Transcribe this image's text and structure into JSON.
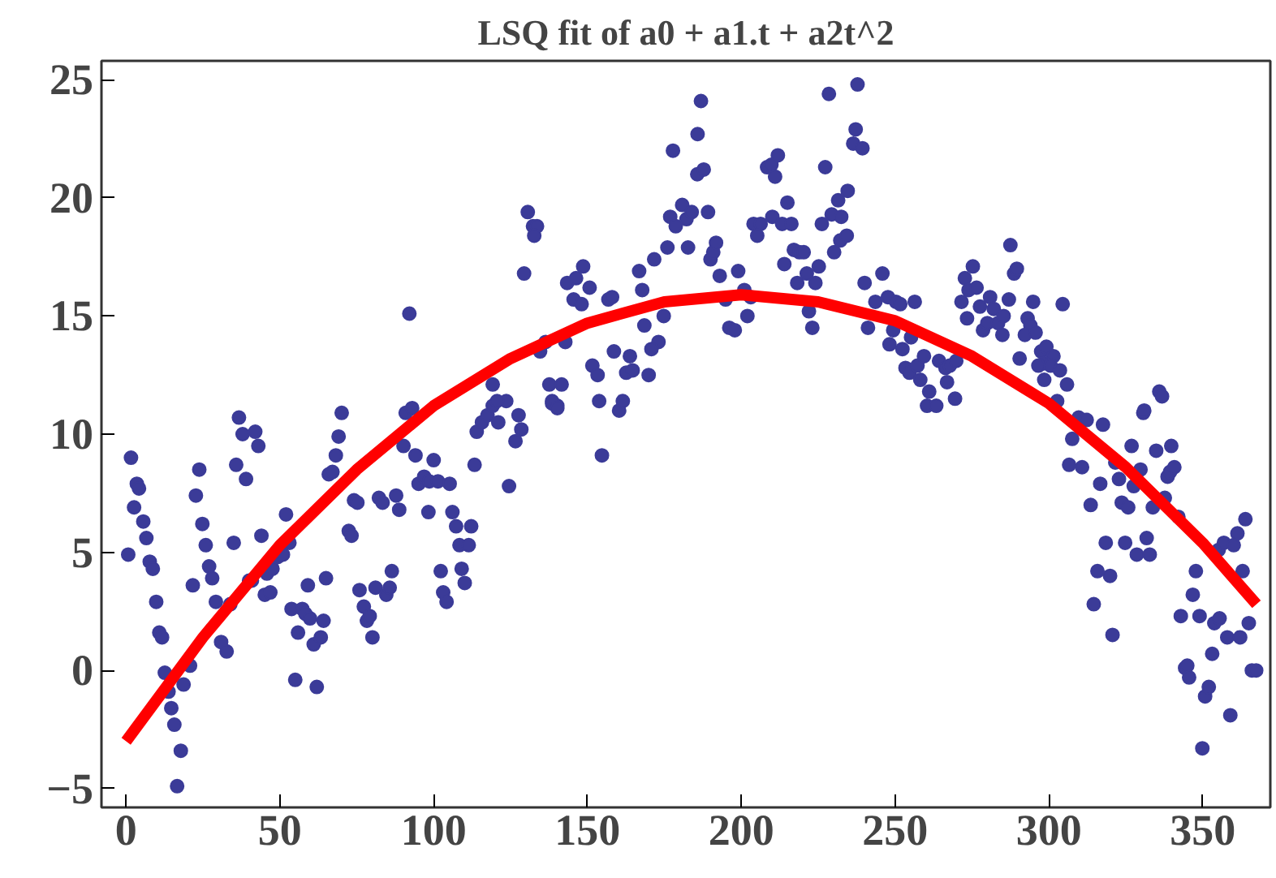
{
  "chart_data": {
    "type": "scatter",
    "title": "LSQ fit of a0 + a1.t + a2t^2",
    "xlim": [
      -8,
      372
    ],
    "ylim": [
      -5.8,
      25.8
    ],
    "xticks": [
      0,
      50,
      100,
      150,
      200,
      250,
      300,
      350
    ],
    "yticks": [
      -5,
      0,
      5,
      10,
      15,
      20,
      25
    ],
    "series": [
      {
        "marker": "circle",
        "color": "#3b3b98",
        "x": [
          0.7,
          1.6,
          2.6,
          3.5,
          4.2,
          5.6,
          6.6,
          7.7,
          8.7,
          9.8,
          10.8,
          11.7,
          12.6,
          13.8,
          14.7,
          15.7,
          17.8,
          16.6,
          18.7,
          20.8,
          21.7,
          22.7,
          23.8,
          24.8,
          25.9,
          27,
          28,
          29.2,
          30.9,
          32.7,
          33.9,
          35,
          35.8,
          36.7,
          37.9,
          39,
          40,
          40.9,
          42,
          43,
          44,
          45.1,
          46.9,
          45.8,
          47.6,
          49.3,
          51,
          52,
          53.1,
          53.8,
          55,
          55.9,
          57.3,
          58.3,
          59.8,
          59.1,
          61,
          63.3,
          62,
          64.2,
          65,
          65.9,
          67.1,
          68.2,
          69.1,
          70.1,
          72.4,
          73.3,
          74.1,
          75.2,
          75.9,
          77.3,
          78.3,
          79.2,
          80.1,
          81.1,
          82.2,
          83.4,
          84.6,
          85.7,
          86.4,
          87.8,
          88.8,
          90.2,
          90.9,
          93,
          92.1,
          94.1,
          95.1,
          96.9,
          98.6,
          100,
          98.3,
          101.4,
          105.2,
          106.1,
          107.3,
          112.2,
          108.4,
          111.4,
          102.3,
          109.1,
          110.1,
          103.1,
          104.2,
          113.3,
          114,
          115.7,
          117.5,
          119.2,
          121,
          123.6,
          120.6,
          127.6,
          128.5,
          126.6,
          124.5,
          138.5,
          140.2,
          153.8,
          154.7,
          160.3,
          161.5,
          130.6,
          132.3,
          133.6,
          132.7,
          129.4,
          143.4,
          146.3,
          148.6,
          150.7,
          145.5,
          148.1,
          134.6,
          136.4,
          142.8,
          137.6,
          141.6,
          138.5,
          140.2,
          119.2,
          151.6,
          153.3,
          158.6,
          162.6,
          164.7,
          163.8,
          169.9,
          156.8,
          158,
          166.8,
          167.8,
          171.7,
          174.8,
          168.5,
          173.1,
          170.8,
          176,
          177.8,
          176.9,
          178.7,
          180.8,
          182.2,
          183.9,
          182.7,
          185.7,
          187.8,
          185.8,
          186.9,
          189.2,
          190,
          190.9,
          191.8,
          193,
          194.9,
          196.1,
          197.9,
          199,
          202,
          201,
          203.1,
          204,
          206.3,
          205.2,
          208.4,
          209.8,
          211.9,
          211,
          210.1,
          213.3,
          216.3,
          215,
          214,
          217.1,
          218.9,
          220.3,
          218.2,
          221.3,
          224.1,
          225.2,
          222,
          223.1,
          226.2,
          228.5,
          227.3,
          229.4,
          231.5,
          232.5,
          234.6,
          230.2,
          232.2,
          234.3,
          236.4,
          237.8,
          237.2,
          239.4,
          240.1,
          241.2,
          243.6,
          245.9,
          247.7,
          250.3,
          251.7,
          249.4,
          248.2,
          252.4,
          256.4,
          255.2,
          253.4,
          254.7,
          257.3,
          259.4,
          258.2,
          261.1,
          260.4,
          263.4,
          264.3,
          266.4,
          267.8,
          269.9,
          266.9,
          269.5,
          271.6,
          272.7,
          273.9,
          275.3,
          276.5,
          277.6,
          273.4,
          278.6,
          280,
          280.9,
          282.1,
          283.5,
          284.9,
          285.3,
          287,
          287.5,
          288.7,
          289.6,
          293.1,
          294,
          294.9,
          292.2,
          295.7,
          290.5,
          297.5,
          299.2,
          301.5,
          298.4,
          296.6,
          300.6,
          303.6,
          305.9,
          298.5,
          302.7,
          304.5,
          309.7,
          312.3,
          317.6,
          330.7,
          335.9,
          336.8,
          307.6,
          306.6,
          310.8,
          313.6,
          316.7,
          318.5,
          319.9,
          315.8,
          314.6,
          320.7,
          321.6,
          322.8,
          323.7,
          325.8,
          324.8,
          326.9,
          327.6,
          328.6,
          329.8,
          331,
          331.8,
          332.8,
          333.8,
          334.9,
          338.6,
          339.8,
          339.4,
          340.8,
          337.7,
          342.1,
          342.9,
          344.3,
          345,
          345.6,
          346.8,
          347.8,
          349,
          349.9,
          350.8,
          352,
          353.1,
          353.8,
          355.5,
          355.2,
          356.9,
          358,
          359,
          360.1,
          361.3,
          362.2,
          363,
          363.9,
          365,
          366,
          367.4
        ],
        "values": [
          4.9,
          9.0,
          6.9,
          7.9,
          7.7,
          6.3,
          5.6,
          4.6,
          4.3,
          2.9,
          1.6,
          1.4,
          -0.1,
          -0.9,
          -1.6,
          -2.3,
          -3.4,
          -4.9,
          -0.6,
          0.2,
          3.6,
          7.4,
          8.5,
          6.2,
          5.3,
          4.4,
          3.9,
          2.9,
          1.2,
          0.8,
          2.8,
          5.4,
          8.7,
          10.7,
          10.0,
          8.1,
          3.8,
          3.8,
          10.1,
          9.5,
          5.7,
          3.2,
          3.3,
          4.1,
          4.3,
          4.8,
          4.9,
          6.6,
          5.4,
          2.6,
          -0.4,
          1.6,
          2.6,
          2.4,
          2.2,
          3.6,
          1.1,
          1.4,
          -0.7,
          2.1,
          3.9,
          8.3,
          8.4,
          9.1,
          9.9,
          10.9,
          5.9,
          5.7,
          7.2,
          7.1,
          3.4,
          2.7,
          2.1,
          2.3,
          1.4,
          3.5,
          7.3,
          7.1,
          3.2,
          3.5,
          4.2,
          7.4,
          6.8,
          9.5,
          10.9,
          11.1,
          15.1,
          9.1,
          7.9,
          8.2,
          8.0,
          8.9,
          6.7,
          8.0,
          7.9,
          6.7,
          6.1,
          6.1,
          5.3,
          5.3,
          4.2,
          4.3,
          3.7,
          3.3,
          2.9,
          8.7,
          10.1,
          10.5,
          10.8,
          11.2,
          10.5,
          11.4,
          11.4,
          10.8,
          10.2,
          9.7,
          7.8,
          11.4,
          11.2,
          11.4,
          9.1,
          11.0,
          11.4,
          19.4,
          18.8,
          18.8,
          18.4,
          16.8,
          16.4,
          16.6,
          17.1,
          16.2,
          15.7,
          15.5,
          13.5,
          13.9,
          13.9,
          12.1,
          12.1,
          11.3,
          11.1,
          12.1,
          12.9,
          12.5,
          13.5,
          12.6,
          12.7,
          13.3,
          12.5,
          15.7,
          15.8,
          16.9,
          16.1,
          17.4,
          15.0,
          14.6,
          13.9,
          13.6,
          17.9,
          22.0,
          19.2,
          18.8,
          19.7,
          19.1,
          19.4,
          17.9,
          21.0,
          21.2,
          22.7,
          24.1,
          19.4,
          17.4,
          17.7,
          18.1,
          16.7,
          15.7,
          14.5,
          14.4,
          16.9,
          15.0,
          16.1,
          15.8,
          18.9,
          18.9,
          18.4,
          21.3,
          21.4,
          21.8,
          20.9,
          19.2,
          18.9,
          18.9,
          19.8,
          17.2,
          17.8,
          17.7,
          17.7,
          16.4,
          16.8,
          16.4,
          17.1,
          15.2,
          14.5,
          18.9,
          24.4,
          21.3,
          19.3,
          19.9,
          19.2,
          20.3,
          17.7,
          18.2,
          18.4,
          22.3,
          24.8,
          22.9,
          22.1,
          16.4,
          14.5,
          15.6,
          16.8,
          15.8,
          15.6,
          15.5,
          14.4,
          13.8,
          13.6,
          15.6,
          14.1,
          12.8,
          12.6,
          12.9,
          13.3,
          12.3,
          11.8,
          11.2,
          11.2,
          13.1,
          12.8,
          12.9,
          13.1,
          12.2,
          11.5,
          15.6,
          16.6,
          16.1,
          17.1,
          16.2,
          15.4,
          14.9,
          14.4,
          14.7,
          15.8,
          15.3,
          14.7,
          14.2,
          15.0,
          15.7,
          18.0,
          16.8,
          17.0,
          14.9,
          14.6,
          15.6,
          14.2,
          14.3,
          13.2,
          13.5,
          13.7,
          13.3,
          13.0,
          12.9,
          12.9,
          12.7,
          12.1,
          12.3,
          11.4,
          15.5,
          10.7,
          10.6,
          10.4,
          10.9,
          11.8,
          11.6,
          9.8,
          8.7,
          8.6,
          7.0,
          7.9,
          5.4,
          4.0,
          4.2,
          2.8,
          1.5,
          8.8,
          8.1,
          7.1,
          6.9,
          5.4,
          9.5,
          7.8,
          4.9,
          8.5,
          11.0,
          5.6,
          4.9,
          6.9,
          9.3,
          8.2,
          9.5,
          8.4,
          8.6,
          7.3,
          6.5,
          2.3,
          0.1,
          0.2,
          -0.3,
          3.2,
          4.2,
          2.3,
          -3.3,
          -1.1,
          -0.7,
          0.7,
          2.0,
          2.2,
          5.1,
          5.4,
          1.4,
          -1.9,
          5.3,
          5.8,
          1.4,
          4.2,
          6.4,
          2.0,
          0.0,
          0.0
        ]
      },
      {
        "type": "line",
        "color": "#ff0000",
        "x": [
          0,
          25,
          50,
          75,
          100,
          125,
          150,
          175,
          200,
          225,
          250,
          275,
          300,
          325,
          350,
          367.5
        ],
        "values": [
          -3.0,
          1.4,
          5.3,
          8.5,
          11.2,
          13.2,
          14.7,
          15.6,
          15.9,
          15.6,
          14.8,
          13.3,
          11.3,
          8.6,
          5.4,
          2.8
        ]
      }
    ]
  }
}
